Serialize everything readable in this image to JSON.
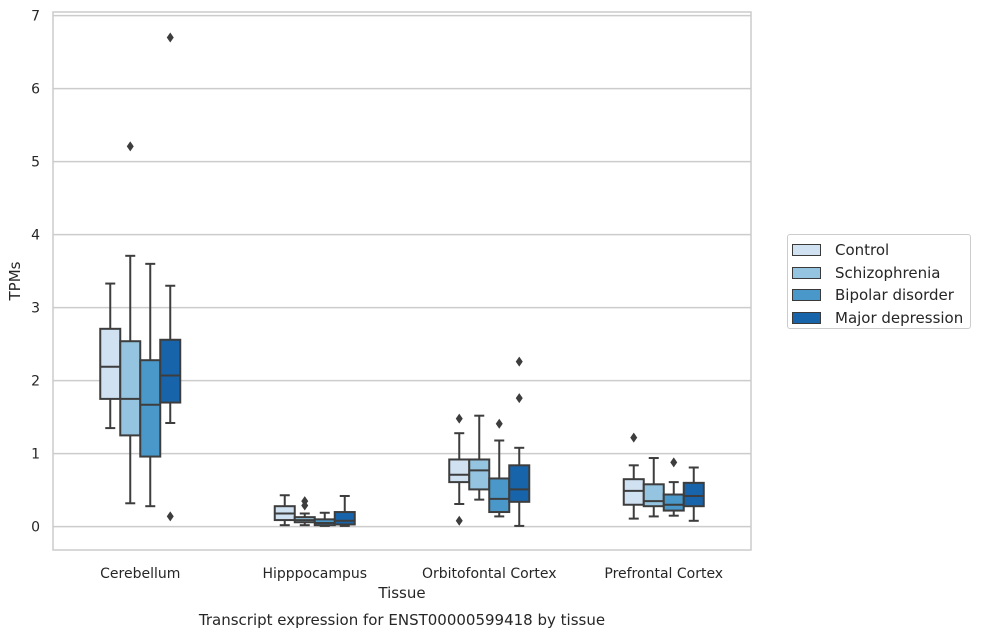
{
  "chart_data": {
    "type": "box",
    "caption": "Transcript expression for ENST00000599418 by tissue",
    "xlabel": "Tissue",
    "ylabel": "TPMs",
    "ylim": [
      -0.32,
      7.05
    ],
    "yticks": [
      "0",
      "1",
      "2",
      "3",
      "4",
      "5",
      "6",
      "7"
    ],
    "grid": true,
    "legend_position": "right",
    "categories": [
      "Cerebellum",
      "Hipppocampus",
      "Orbitofontal Cortex",
      "Prefrontal Cortex"
    ],
    "series": [
      {
        "name": "Control",
        "color": "#d0e1f2",
        "boxes": [
          {
            "whislo": 1.35,
            "q1": 1.75,
            "med": 2.19,
            "q3": 2.71,
            "whishi": 3.33,
            "fliers": []
          },
          {
            "whislo": 0.02,
            "q1": 0.09,
            "med": 0.18,
            "q3": 0.28,
            "whishi": 0.43,
            "fliers": []
          },
          {
            "whislo": 0.31,
            "q1": 0.61,
            "med": 0.71,
            "q3": 0.92,
            "whishi": 1.28,
            "fliers": [
              1.48,
              0.08
            ]
          },
          {
            "whislo": 0.11,
            "q1": 0.3,
            "med": 0.49,
            "q3": 0.65,
            "whishi": 0.84,
            "fliers": [
              1.22
            ]
          }
        ]
      },
      {
        "name": "Schizophrenia",
        "color": "#94c4df",
        "boxes": [
          {
            "whislo": 0.32,
            "q1": 1.25,
            "med": 1.75,
            "q3": 2.54,
            "whishi": 3.71,
            "fliers": [
              5.21
            ]
          },
          {
            "whislo": 0.02,
            "q1": 0.06,
            "med": 0.09,
            "q3": 0.13,
            "whishi": 0.18,
            "fliers": [
              0.35,
              0.29
            ]
          },
          {
            "whislo": 0.37,
            "q1": 0.51,
            "med": 0.77,
            "q3": 0.92,
            "whishi": 1.52,
            "fliers": []
          },
          {
            "whislo": 0.14,
            "q1": 0.28,
            "med": 0.35,
            "q3": 0.58,
            "whishi": 0.94,
            "fliers": []
          }
        ]
      },
      {
        "name": "Bipolar disorder",
        "color": "#4a98c9",
        "boxes": [
          {
            "whislo": 0.28,
            "q1": 0.96,
            "med": 1.67,
            "q3": 2.28,
            "whishi": 3.6,
            "fliers": []
          },
          {
            "whislo": 0.01,
            "q1": 0.02,
            "med": 0.05,
            "q3": 0.1,
            "whishi": 0.19,
            "fliers": []
          },
          {
            "whislo": 0.14,
            "q1": 0.2,
            "med": 0.38,
            "q3": 0.66,
            "whishi": 1.18,
            "fliers": [
              1.41
            ]
          },
          {
            "whislo": 0.15,
            "q1": 0.22,
            "med": 0.3,
            "q3": 0.44,
            "whishi": 0.61,
            "fliers": [
              0.88
            ]
          }
        ]
      },
      {
        "name": "Major depression",
        "color": "#1764ab",
        "boxes": [
          {
            "whislo": 1.42,
            "q1": 1.7,
            "med": 2.07,
            "q3": 2.56,
            "whishi": 3.3,
            "fliers": [
              6.7,
              0.14
            ]
          },
          {
            "whislo": 0.01,
            "q1": 0.03,
            "med": 0.08,
            "q3": 0.2,
            "whishi": 0.42,
            "fliers": []
          },
          {
            "whislo": 0.01,
            "q1": 0.34,
            "med": 0.51,
            "q3": 0.84,
            "whishi": 1.08,
            "fliers": [
              2.26,
              1.76
            ]
          },
          {
            "whislo": 0.08,
            "q1": 0.28,
            "med": 0.42,
            "q3": 0.6,
            "whishi": 0.81,
            "fliers": []
          }
        ]
      }
    ]
  }
}
